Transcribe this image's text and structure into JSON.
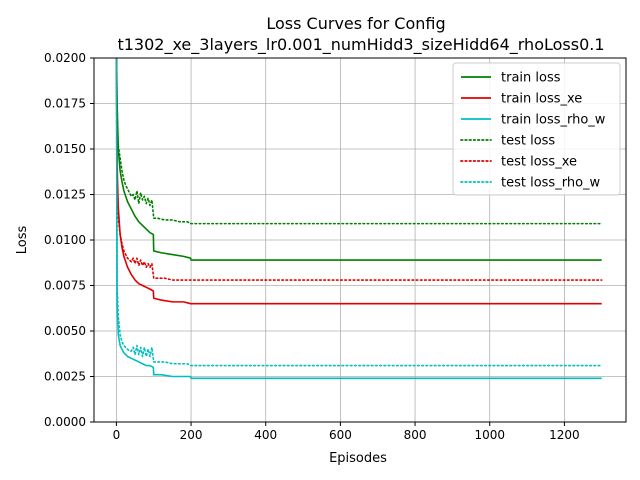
{
  "chart_data": {
    "type": "line",
    "title_line1": "Loss Curves for Config",
    "title_line2": "t1302_xe_3layers_lr0.001_numHidd3_sizeHidd64_rhoLoss0.1",
    "xlabel": "Episodes",
    "ylabel": "Loss",
    "xlim": [
      -60,
      1365
    ],
    "ylim": [
      0.0,
      0.02
    ],
    "x_ticks": [
      0,
      200,
      400,
      600,
      800,
      1000,
      1200
    ],
    "x_tick_labels": [
      "0",
      "200",
      "400",
      "600",
      "800",
      "1000",
      "1200"
    ],
    "y_ticks": [
      0.0,
      0.0025,
      0.005,
      0.0075,
      0.01,
      0.0125,
      0.015,
      0.0175,
      0.02
    ],
    "y_tick_labels": [
      "0.0000",
      "0.0025",
      "0.0050",
      "0.0075",
      "0.0100",
      "0.0125",
      "0.0150",
      "0.0175",
      "0.0200"
    ],
    "grid": true,
    "legend_position": "top-right",
    "series": [
      {
        "name": "train loss",
        "color": "#008000",
        "style": "solid",
        "x": [
          0,
          2,
          5,
          10,
          15,
          20,
          30,
          40,
          50,
          60,
          70,
          80,
          90,
          99,
          100,
          120,
          150,
          180,
          199,
          200,
          300,
          500,
          800,
          1000,
          1300
        ],
        "y": [
          0.0205,
          0.0175,
          0.015,
          0.0138,
          0.0132,
          0.0127,
          0.0121,
          0.0117,
          0.0113,
          0.011,
          0.0108,
          0.0106,
          0.0104,
          0.0103,
          0.0094,
          0.0093,
          0.0092,
          0.0091,
          0.009,
          0.0089,
          0.0089,
          0.0089,
          0.0089,
          0.0089,
          0.0089
        ]
      },
      {
        "name": "train loss_xe",
        "color": "#e00000",
        "style": "solid",
        "x": [
          0,
          2,
          5,
          10,
          15,
          20,
          30,
          40,
          50,
          60,
          70,
          80,
          90,
          99,
          100,
          120,
          150,
          180,
          199,
          200,
          300,
          500,
          800,
          1000,
          1300
        ],
        "y": [
          0.0205,
          0.014,
          0.0118,
          0.0103,
          0.0096,
          0.0091,
          0.0085,
          0.0081,
          0.0078,
          0.0076,
          0.0075,
          0.0074,
          0.0073,
          0.0072,
          0.0068,
          0.0067,
          0.0066,
          0.0066,
          0.0065,
          0.0065,
          0.0065,
          0.0065,
          0.0065,
          0.0065,
          0.0065
        ]
      },
      {
        "name": "train loss_rho_w",
        "color": "#00bfbf",
        "style": "solid",
        "x": [
          0,
          2,
          5,
          10,
          15,
          20,
          30,
          40,
          50,
          60,
          70,
          80,
          90,
          99,
          100,
          120,
          150,
          180,
          199,
          200,
          300,
          500,
          800,
          1000,
          1300
        ],
        "y": [
          0.0205,
          0.0065,
          0.0048,
          0.0042,
          0.004,
          0.0038,
          0.0036,
          0.0035,
          0.0034,
          0.0033,
          0.0032,
          0.0031,
          0.0031,
          0.003,
          0.0026,
          0.0026,
          0.0025,
          0.0025,
          0.0025,
          0.0024,
          0.0024,
          0.0024,
          0.0024,
          0.0024,
          0.0024
        ]
      },
      {
        "name": "test loss",
        "color": "#008000",
        "style": "dotted",
        "x": [
          0,
          2,
          5,
          10,
          15,
          20,
          25,
          30,
          35,
          40,
          45,
          50,
          55,
          60,
          65,
          70,
          75,
          80,
          85,
          90,
          95,
          100,
          110,
          130,
          150,
          170,
          190,
          200,
          300,
          500,
          800,
          1000,
          1300
        ],
        "y": [
          0.0205,
          0.0165,
          0.0152,
          0.0145,
          0.0138,
          0.0133,
          0.013,
          0.0128,
          0.0126,
          0.0124,
          0.0125,
          0.0122,
          0.0127,
          0.012,
          0.0126,
          0.0122,
          0.0124,
          0.012,
          0.0123,
          0.0119,
          0.0122,
          0.0112,
          0.0112,
          0.0111,
          0.0111,
          0.011,
          0.011,
          0.0109,
          0.0109,
          0.0109,
          0.0109,
          0.0109,
          0.0109
        ]
      },
      {
        "name": "test loss_xe",
        "color": "#e00000",
        "style": "dotted",
        "x": [
          0,
          2,
          5,
          10,
          15,
          20,
          25,
          30,
          35,
          40,
          45,
          50,
          55,
          60,
          65,
          70,
          75,
          80,
          85,
          90,
          95,
          100,
          110,
          130,
          150,
          170,
          190,
          200,
          300,
          500,
          800,
          1000,
          1300
        ],
        "y": [
          0.0205,
          0.0125,
          0.0112,
          0.0103,
          0.0098,
          0.0094,
          0.0092,
          0.009,
          0.0089,
          0.0088,
          0.009,
          0.0087,
          0.009,
          0.0086,
          0.0089,
          0.0086,
          0.0088,
          0.0085,
          0.0087,
          0.0085,
          0.0087,
          0.0079,
          0.0079,
          0.0079,
          0.0078,
          0.0078,
          0.0078,
          0.0078,
          0.0078,
          0.0078,
          0.0078,
          0.0078,
          0.0078
        ]
      },
      {
        "name": "test loss_rho_w",
        "color": "#00bfbf",
        "style": "dotted",
        "x": [
          0,
          2,
          5,
          10,
          15,
          20,
          25,
          30,
          35,
          40,
          45,
          50,
          55,
          60,
          65,
          70,
          75,
          80,
          85,
          90,
          95,
          100,
          110,
          130,
          150,
          170,
          190,
          200,
          300,
          500,
          800,
          1000,
          1300
        ],
        "y": [
          0.0205,
          0.0075,
          0.0058,
          0.0048,
          0.0044,
          0.0042,
          0.0041,
          0.004,
          0.0039,
          0.0039,
          0.0041,
          0.0037,
          0.0042,
          0.0037,
          0.0041,
          0.0036,
          0.0041,
          0.0036,
          0.004,
          0.0036,
          0.0041,
          0.0033,
          0.0033,
          0.0033,
          0.0032,
          0.0032,
          0.0032,
          0.0031,
          0.0031,
          0.0031,
          0.0031,
          0.0031,
          0.0031
        ]
      }
    ]
  }
}
